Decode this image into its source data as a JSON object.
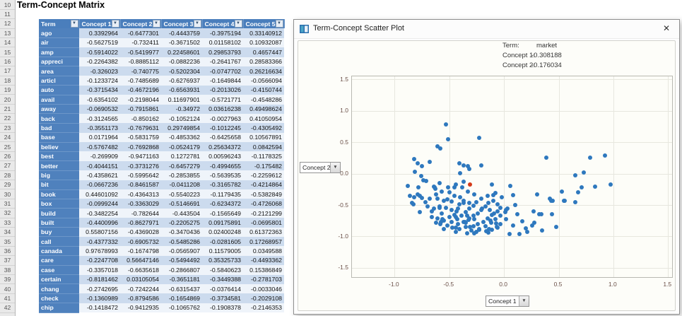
{
  "spreadsheet": {
    "title": "Term-Concept Matrix",
    "row_numbers": [
      10,
      11,
      12,
      13,
      14,
      15,
      16,
      17,
      18,
      19,
      20,
      21,
      22,
      23,
      24,
      25,
      26,
      27,
      28,
      29,
      30,
      31,
      32,
      33,
      34,
      35,
      36,
      37,
      38,
      39,
      40,
      41,
      42
    ],
    "table": {
      "columns": [
        "Term",
        "Concept 1",
        "Concept 2",
        "Concept 3",
        "Concept 4",
        "Concept 5"
      ],
      "rows": [
        {
          "term": "ago",
          "values": [
            "0.3392964",
            "-0.6477301",
            "-0.4443759",
            "-0.3975194",
            "0.33140912"
          ]
        },
        {
          "term": "air",
          "values": [
            "-0.5627519",
            "-0.732411",
            "-0.3671502",
            "0.01158102",
            "0.10932087"
          ]
        },
        {
          "term": "amp",
          "values": [
            "-0.5914022",
            "-0.5419977",
            "0.22458601",
            "0.29853793",
            "0.4657447"
          ]
        },
        {
          "term": "appreci",
          "values": [
            "-0.2264382",
            "-0.8885112",
            "-0.0882236",
            "-0.2641767",
            "0.28583366"
          ]
        },
        {
          "term": "area",
          "values": [
            "-0.326023",
            "-0.740775",
            "-0.5202304",
            "-0.0747702",
            "0.26216634"
          ]
        },
        {
          "term": "articl",
          "values": [
            "-0.1233724",
            "-0.7485689",
            "-0.6276937",
            "-0.1649844",
            "-0.0566094"
          ]
        },
        {
          "term": "auto",
          "values": [
            "-0.3715434",
            "-0.4672196",
            "-0.6563931",
            "-0.2013026",
            "-0.4150744"
          ]
        },
        {
          "term": "avail",
          "values": [
            "-0.6354102",
            "-0.2198044",
            "0.11697901",
            "-0.5721771",
            "-0.4548286"
          ]
        },
        {
          "term": "away",
          "values": [
            "-0.0690532",
            "-0.7915861",
            "-0.34972",
            "0.03616238",
            "0.49498624"
          ]
        },
        {
          "term": "back",
          "values": [
            "-0.3124565",
            "-0.850162",
            "-0.1052124",
            "-0.0027963",
            "0.41050954"
          ]
        },
        {
          "term": "bad",
          "values": [
            "-0.3551173",
            "-0.7679631",
            "0.29749854",
            "-0.1012245",
            "-0.4305492"
          ]
        },
        {
          "term": "base",
          "values": [
            "0.0171964",
            "-0.5831759",
            "-0.4853362",
            "-0.6425658",
            "0.10567891"
          ]
        },
        {
          "term": "believ",
          "values": [
            "-0.5767482",
            "-0.7692868",
            "-0.0524179",
            "0.25634372",
            "0.0842594"
          ]
        },
        {
          "term": "best",
          "values": [
            "-0.269909",
            "-0.9471163",
            "0.1272781",
            "0.00596243",
            "-0.1178325"
          ]
        },
        {
          "term": "better",
          "values": [
            "-0.4044151",
            "-0.3731276",
            "-0.6457279",
            "-0.4994655",
            "-0.175482"
          ]
        },
        {
          "term": "big",
          "values": [
            "-0.4358621",
            "-0.5995642",
            "-0.2853855",
            "-0.5639535",
            "-0.2259612"
          ]
        },
        {
          "term": "bit",
          "values": [
            "-0.0667236",
            "-0.8461587",
            "-0.0411208",
            "-0.3165782",
            "-0.4214864"
          ]
        },
        {
          "term": "book",
          "values": [
            "0.44601092",
            "-0.4364313",
            "-0.5540223",
            "-0.1179435",
            "-0.5382849"
          ]
        },
        {
          "term": "box",
          "values": [
            "-0.0999244",
            "-0.3363029",
            "-0.5146691",
            "-0.6234372",
            "-0.4726068"
          ]
        },
        {
          "term": "build",
          "values": [
            "-0.3482254",
            "-0.782644",
            "-0.443504",
            "-0.1565649",
            "-0.2121299"
          ]
        },
        {
          "term": "built",
          "values": [
            "-0.4400996",
            "-0.8627971",
            "-0.2205275",
            "0.09175891",
            "-0.0695801"
          ]
        },
        {
          "term": "buy",
          "values": [
            "0.55807156",
            "-0.4369028",
            "-0.3470436",
            "0.02400248",
            "0.61372363"
          ]
        },
        {
          "term": "call",
          "values": [
            "-0.4377332",
            "-0.6905732",
            "-0.5485286",
            "-0.0281605",
            "0.17268957"
          ]
        },
        {
          "term": "canada",
          "values": [
            "0.97678993",
            "-0.1674798",
            "-0.0565907",
            "0.11579005",
            "0.0349588"
          ]
        },
        {
          "term": "care",
          "values": [
            "-0.2247708",
            "0.56647146",
            "-0.5494492",
            "0.35325733",
            "-0.4493362"
          ]
        },
        {
          "term": "case",
          "values": [
            "-0.3357018",
            "-0.6635618",
            "-0.2866807",
            "-0.5840623",
            "0.15386849"
          ]
        },
        {
          "term": "certain",
          "values": [
            "-0.8181462",
            "0.03105054",
            "-0.3651181",
            "-0.3449388",
            "-0.2781703"
          ]
        },
        {
          "term": "chang",
          "values": [
            "-0.2742695",
            "-0.7242244",
            "-0.6315437",
            "-0.0376414",
            "-0.0033046"
          ]
        },
        {
          "term": "check",
          "values": [
            "-0.1360989",
            "-0.8794586",
            "-0.1654869",
            "-0.3734581",
            "-0.2029108"
          ]
        },
        {
          "term": "chip",
          "values": [
            "-0.1418472",
            "-0.9412935",
            "-0.1065762",
            "-0.1908378",
            "-0.2146353"
          ]
        }
      ]
    }
  },
  "dialog": {
    "title": "Term-Concept Scatter Plot",
    "close_label": "✕",
    "annotation": {
      "term_label": "Term:",
      "term_value": "market",
      "c1_label": "Concept 1:",
      "c1_value": "-0.308188",
      "c2_label": "Concept 2:",
      "c2_value": "-0.176034"
    },
    "y_axis_selector_value": "Concept 2",
    "x_axis_selector_value": "Concept 1",
    "combo_arrow": "▼",
    "filter_arrow": "▼"
  },
  "chart_data": {
    "type": "scatter",
    "xlabel": "Concept 1",
    "ylabel": "Concept 2",
    "xlim": [
      -1.39,
      1.55
    ],
    "ylim": [
      -1.67,
      1.55
    ],
    "grid": true,
    "x_ticks": [
      -1.0,
      -0.5,
      0.0,
      0.5,
      1.0,
      1.5
    ],
    "y_ticks": [
      1.5,
      1.0,
      0.5,
      0.0,
      -0.5,
      -1.0,
      -1.5
    ],
    "x_tick_labels": [
      "-1.0",
      "-0.5",
      "0.0",
      "0.5",
      "1.0",
      "1.5"
    ],
    "y_tick_labels": [
      "1.5",
      "1.0",
      "0.5",
      "0.0",
      "-0.5",
      "-1.0",
      "-1.5"
    ],
    "point_color": "#2e78be",
    "highlight_color": "#d43a19",
    "highlight_point": {
      "term": "market",
      "x": -0.308188,
      "y": -0.176034
    },
    "points": [
      [
        0.3392964,
        -0.6477301
      ],
      [
        -0.5627519,
        -0.732411
      ],
      [
        -0.5914022,
        -0.5419977
      ],
      [
        -0.2264382,
        -0.8885112
      ],
      [
        -0.326023,
        -0.740775
      ],
      [
        -0.1233724,
        -0.7485689
      ],
      [
        -0.3715434,
        -0.4672196
      ],
      [
        -0.6354102,
        -0.2198044
      ],
      [
        -0.0690532,
        -0.7915861
      ],
      [
        -0.3124565,
        -0.850162
      ],
      [
        -0.3551173,
        -0.7679631
      ],
      [
        0.0171964,
        -0.5831759
      ],
      [
        -0.5767482,
        -0.7692868
      ],
      [
        -0.269909,
        -0.9471163
      ],
      [
        -0.4044151,
        -0.3731276
      ],
      [
        -0.4358621,
        -0.5995642
      ],
      [
        -0.0667236,
        -0.8461587
      ],
      [
        0.44601092,
        -0.4364313
      ],
      [
        -0.0999244,
        -0.3363029
      ],
      [
        -0.3482254,
        -0.782644
      ],
      [
        -0.4400996,
        -0.8627971
      ],
      [
        0.55807156,
        -0.4369028
      ],
      [
        -0.4377332,
        -0.6905732
      ],
      [
        0.97678993,
        -0.1674798
      ],
      [
        -0.2247708,
        0.56647146
      ],
      [
        -0.3357018,
        -0.6635618
      ],
      [
        -0.8181462,
        0.03105054
      ],
      [
        -0.2742695,
        -0.7242244
      ],
      [
        -0.1360989,
        -0.8794586
      ],
      [
        -0.1418472,
        -0.9412935
      ],
      [
        -0.53,
        0.78
      ],
      [
        -0.51,
        0.55
      ],
      [
        -0.58,
        0.4
      ],
      [
        -0.61,
        0.43
      ],
      [
        -0.68,
        0.19
      ],
      [
        -0.82,
        0.23
      ],
      [
        -0.79,
        0.17
      ],
      [
        -0.75,
        0.12
      ],
      [
        -0.41,
        0.17
      ],
      [
        -0.37,
        0.13
      ],
      [
        -0.33,
        0.12
      ],
      [
        -0.21,
        0.13
      ],
      [
        -0.32,
        0.07
      ],
      [
        -0.4,
        0.01
      ],
      [
        -0.76,
        -0.04
      ],
      [
        -0.74,
        -0.1
      ],
      [
        -0.37,
        -0.13
      ],
      [
        0.39,
        0.25
      ],
      [
        0.79,
        0.25
      ],
      [
        0.92,
        0.29
      ],
      [
        0.65,
        -0.03
      ],
      [
        0.73,
        0.02
      ],
      [
        -0.88,
        -0.19
      ],
      [
        -0.71,
        -0.12
      ],
      [
        -0.59,
        -0.15
      ],
      [
        -0.11,
        -0.17
      ],
      [
        -0.45,
        -0.22
      ],
      [
        -0.63,
        -0.24
      ],
      [
        -0.78,
        -0.22
      ],
      [
        -0.86,
        -0.35
      ],
      [
        -0.82,
        -0.37
      ],
      [
        -0.77,
        -0.35
      ],
      [
        -0.83,
        -0.49
      ],
      [
        -0.77,
        -0.61
      ],
      [
        -0.79,
        -0.33
      ],
      [
        -0.84,
        -0.47
      ],
      [
        -0.75,
        -0.39
      ],
      [
        -0.64,
        -0.21
      ],
      [
        -0.61,
        -0.4
      ],
      [
        -0.64,
        -0.56
      ],
      [
        -0.59,
        -0.52
      ],
      [
        -0.55,
        -0.43
      ],
      [
        -0.52,
        -0.41
      ],
      [
        -0.48,
        -0.44
      ],
      [
        -0.53,
        -0.54
      ],
      [
        -0.48,
        -0.58
      ],
      [
        -0.57,
        -0.63
      ],
      [
        -0.66,
        -0.69
      ],
      [
        -0.61,
        -0.71
      ],
      [
        -0.56,
        -0.72
      ],
      [
        -0.5,
        -0.69
      ],
      [
        -0.45,
        -0.66
      ],
      [
        -0.42,
        -0.56
      ],
      [
        -0.41,
        -0.49
      ],
      [
        -0.37,
        -0.43
      ],
      [
        -0.32,
        -0.47
      ],
      [
        -0.28,
        -0.51
      ],
      [
        -0.32,
        -0.56
      ],
      [
        -0.35,
        -0.61
      ],
      [
        -0.39,
        -0.67
      ],
      [
        -0.43,
        -0.72
      ],
      [
        -0.48,
        -0.77
      ],
      [
        -0.42,
        -0.8
      ],
      [
        -0.37,
        -0.77
      ],
      [
        -0.32,
        -0.71
      ],
      [
        -0.28,
        -0.67
      ],
      [
        -0.24,
        -0.63
      ],
      [
        -0.21,
        -0.58
      ],
      [
        -0.17,
        -0.52
      ],
      [
        -0.14,
        -0.47
      ],
      [
        -0.1,
        -0.43
      ],
      [
        -0.06,
        -0.49
      ],
      [
        -0.03,
        -0.54
      ],
      [
        -0.06,
        -0.6
      ],
      [
        -0.11,
        -0.66
      ],
      [
        -0.15,
        -0.71
      ],
      [
        -0.19,
        -0.77
      ],
      [
        -0.24,
        -0.8
      ],
      [
        -0.28,
        -0.84
      ],
      [
        -0.23,
        -0.88
      ],
      [
        -0.17,
        -0.84
      ],
      [
        -0.12,
        -0.78
      ],
      [
        -0.08,
        -0.72
      ],
      [
        -0.03,
        -0.67
      ],
      [
        0.01,
        -0.61
      ],
      [
        0.03,
        -0.56
      ],
      [
        -0.03,
        -0.8
      ],
      [
        -0.06,
        -0.86
      ],
      [
        -0.11,
        -0.89
      ],
      [
        -0.16,
        -0.92
      ],
      [
        -0.2,
        -0.55
      ],
      [
        -0.25,
        -0.45
      ],
      [
        -0.45,
        -0.35
      ],
      [
        -0.5,
        -0.3
      ],
      [
        -0.15,
        -0.35
      ],
      [
        -0.08,
        -0.31
      ],
      [
        -0.02,
        -0.38
      ],
      [
        -0.55,
        -0.75
      ],
      [
        -0.58,
        -0.8
      ],
      [
        -0.52,
        -0.83
      ],
      [
        -0.47,
        -0.86
      ],
      [
        -0.41,
        -0.88
      ],
      [
        -0.35,
        -0.85
      ],
      [
        -0.3,
        -0.9
      ],
      [
        -0.25,
        -0.93
      ],
      [
        -0.34,
        -0.95
      ],
      [
        -0.44,
        -0.93
      ],
      [
        -0.55,
        -0.88
      ],
      [
        -0.62,
        -0.78
      ],
      [
        -0.66,
        -0.6
      ],
      [
        -0.7,
        -0.52
      ],
      [
        -0.72,
        -0.45
      ],
      [
        -0.68,
        -0.4
      ],
      [
        -0.62,
        -0.33
      ],
      [
        -0.57,
        -0.28
      ],
      [
        -0.51,
        -0.22
      ],
      [
        -0.44,
        -0.17
      ],
      [
        -0.38,
        -0.22
      ],
      [
        -0.33,
        -0.28
      ],
      [
        -0.27,
        -0.33
      ],
      [
        -0.21,
        -0.4
      ],
      [
        -0.13,
        -0.58
      ],
      [
        -0.09,
        -0.63
      ],
      [
        0.08,
        -0.34
      ],
      [
        0.12,
        -0.64
      ],
      [
        0.27,
        -0.6
      ],
      [
        0.32,
        -0.65
      ],
      [
        0.44,
        -0.64
      ],
      [
        0.17,
        -0.76
      ],
      [
        0.28,
        -0.78
      ],
      [
        0.26,
        -0.83
      ],
      [
        0.08,
        -0.82
      ],
      [
        0.2,
        -0.87
      ],
      [
        0.21,
        -0.93
      ],
      [
        0.14,
        -0.96
      ],
      [
        0.05,
        -0.96
      ],
      [
        0.48,
        -0.85
      ],
      [
        0.42,
        -0.4
      ],
      [
        0.43,
        -0.43
      ],
      [
        0.53,
        -0.28
      ],
      [
        0.55,
        -0.43
      ],
      [
        0.65,
        -0.45
      ],
      [
        0.68,
        -0.3
      ],
      [
        0.71,
        -0.22
      ],
      [
        0.83,
        -0.21
      ],
      [
        0.06,
        -0.2
      ],
      [
        0.1,
        -0.5
      ],
      [
        0.02,
        -0.72
      ],
      [
        0.35,
        -0.9
      ],
      [
        0.3,
        -0.33
      ]
    ]
  }
}
